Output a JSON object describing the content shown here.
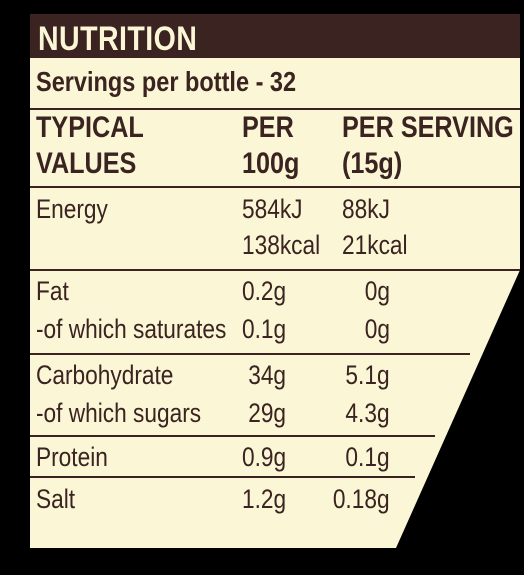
{
  "title": "NUTRITION",
  "servings": "Servings per bottle - 32",
  "columns": {
    "col1_line1": "TYPICAL",
    "col1_line2": "VALUES",
    "col2_line1": "PER",
    "col2_line2": "100g",
    "col3_line1": "PER SERVING",
    "col3_line2": "(15g)"
  },
  "rows": [
    {
      "name": "Energy",
      "per100": "584kJ",
      "perServing": "88kJ"
    },
    {
      "name": "",
      "per100": "138kcal",
      "perServing": "21kcal"
    },
    {
      "name": "Fat",
      "per100": "0.2g",
      "perServing": "0g"
    },
    {
      "name": "-of which saturates",
      "per100": "0.1g",
      "perServing": "0g"
    },
    {
      "name": "Carbohydrate",
      "per100": "34g",
      "perServing": "5.1g"
    },
    {
      "name": "-of which sugars",
      "per100": "29g",
      "perServing": "4.3g"
    },
    {
      "name": "Protein",
      "per100": "0.9g",
      "perServing": "0.1g"
    },
    {
      "name": "Salt",
      "per100": "1.2g",
      "perServing": "0.18g"
    }
  ],
  "colors": {
    "background": "#000000",
    "label": "#fbf6d6",
    "header_bar": "#3a2320",
    "text": "#3a2320"
  }
}
